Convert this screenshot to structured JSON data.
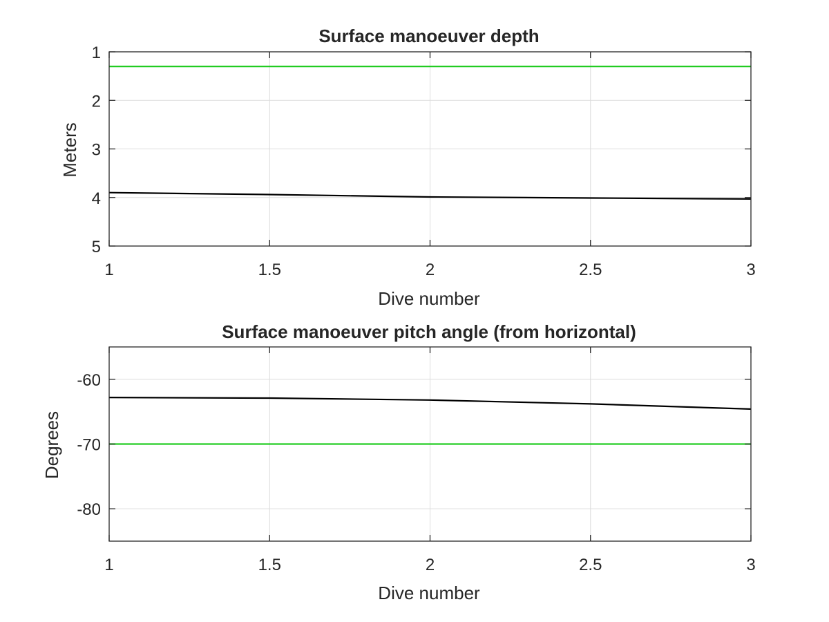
{
  "chart_data": [
    {
      "type": "line",
      "title": "Surface manoeuver depth",
      "xlabel": "Dive number",
      "ylabel": "Meters",
      "xlim": [
        1,
        3
      ],
      "ylim": [
        1,
        5
      ],
      "y_reversed": true,
      "grid": true,
      "xticks": [
        1,
        1.5,
        2,
        2.5,
        3
      ],
      "xtick_labels": [
        "1",
        "1.5",
        "2",
        "2.5",
        "3"
      ],
      "yticks": [
        1,
        2,
        3,
        4,
        5
      ],
      "ytick_labels": [
        "1",
        "2",
        "3",
        "4",
        "5"
      ],
      "series": [
        {
          "color": "#000000",
          "x": [
            1,
            1.5,
            2,
            2.5,
            3
          ],
          "y": [
            3.9,
            3.94,
            3.99,
            4.01,
            4.03
          ]
        },
        {
          "color": "#22cc22",
          "x": [
            1,
            3
          ],
          "y": [
            1.3,
            1.3
          ]
        }
      ]
    },
    {
      "type": "line",
      "title": "Surface manoeuver pitch angle (from horizontal)",
      "xlabel": "Dive number",
      "ylabel": "Degrees",
      "xlim": [
        1,
        3
      ],
      "ylim": [
        -85,
        -55
      ],
      "y_reversed": false,
      "grid": true,
      "xticks": [
        1,
        1.5,
        2,
        2.5,
        3
      ],
      "xtick_labels": [
        "1",
        "1.5",
        "2",
        "2.5",
        "3"
      ],
      "yticks": [
        -60,
        -70,
        -80
      ],
      "ytick_labels": [
        "-60",
        "-70",
        "-80"
      ],
      "series": [
        {
          "color": "#000000",
          "x": [
            1,
            1.5,
            2,
            2.5,
            3
          ],
          "y": [
            -62.8,
            -62.9,
            -63.2,
            -63.8,
            -64.6
          ]
        },
        {
          "color": "#22cc22",
          "x": [
            1,
            3
          ],
          "y": [
            -70,
            -70
          ]
        }
      ]
    }
  ]
}
